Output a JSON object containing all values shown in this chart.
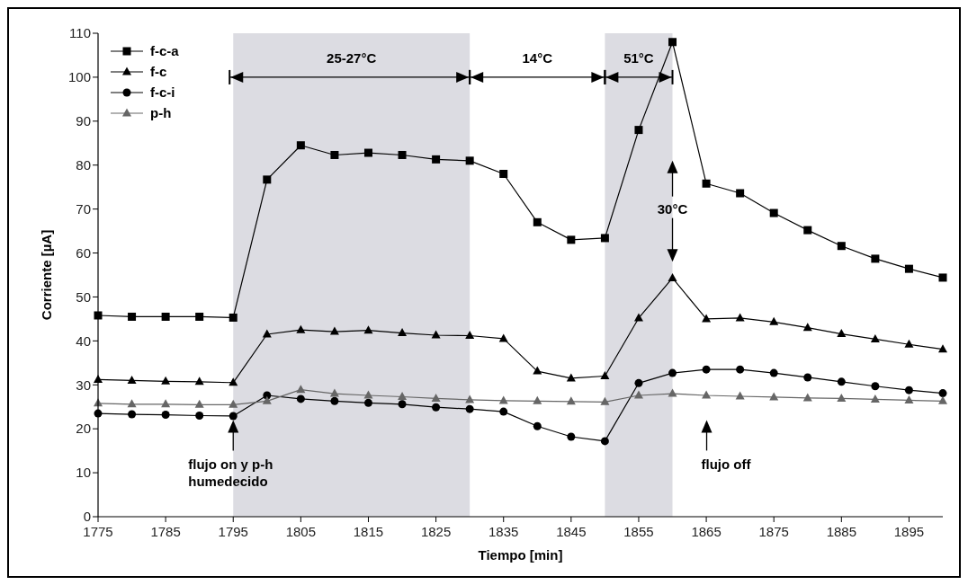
{
  "chart_data": {
    "type": "line",
    "xlabel": "Tiempo [min]",
    "ylabel": "Corriente [µA]",
    "x": [
      1775,
      1780,
      1785,
      1790,
      1795,
      1800,
      1805,
      1810,
      1815,
      1820,
      1825,
      1830,
      1835,
      1840,
      1845,
      1850,
      1855,
      1860,
      1865,
      1870,
      1875,
      1880,
      1885,
      1890,
      1895,
      1900
    ],
    "series": [
      {
        "name": "f-c-a",
        "color": "#000000",
        "marker": "square",
        "values": [
          45.8,
          45.5,
          45.5,
          45.5,
          45.3,
          76.7,
          84.5,
          82.3,
          82.8,
          82.3,
          81.3,
          81,
          78,
          67,
          63,
          63.4,
          88,
          108,
          75.8,
          73.6,
          69.1,
          65.2,
          61.6,
          58.7,
          56.4,
          54.4
        ]
      },
      {
        "name": "f-c",
        "color": "#000000",
        "marker": "triangle",
        "values": [
          31.2,
          31,
          30.8,
          30.7,
          30.5,
          41.5,
          42.5,
          42.1,
          42.4,
          41.8,
          41.3,
          41.2,
          40.5,
          33.1,
          31.5,
          32,
          45.2,
          54.3,
          45,
          45.2,
          44.3,
          43,
          41.6,
          40.4,
          39.2,
          38.1
        ]
      },
      {
        "name": "f-c-i",
        "color": "#000000",
        "marker": "circle",
        "values": [
          23.5,
          23.3,
          23.2,
          23,
          22.9,
          27.6,
          26.8,
          26.3,
          25.9,
          25.6,
          24.9,
          24.5,
          23.9,
          20.6,
          18.2,
          17.2,
          30.4,
          32.7,
          33.5,
          33.5,
          32.7,
          31.7,
          30.7,
          29.7,
          28.8,
          28.1
        ]
      },
      {
        "name": "p-h",
        "color": "#666666",
        "marker": "triangle",
        "values": [
          25.8,
          25.6,
          25.6,
          25.5,
          25.5,
          26.3,
          28.9,
          28,
          27.6,
          27.3,
          26.9,
          26.6,
          26.4,
          26.3,
          26.2,
          26.1,
          27.6,
          28,
          27.6,
          27.4,
          27.2,
          27,
          26.9,
          26.7,
          26.5,
          26.3
        ]
      }
    ],
    "bands": [
      {
        "axis": "x",
        "from": 1795,
        "to": 1830,
        "label": "25-27°C",
        "color": "#dcdce2"
      },
      {
        "axis": "x",
        "from": 1850,
        "to": 1860,
        "label": "51°C",
        "color": "#dcdce2"
      }
    ],
    "annotations": [
      "14°C",
      {
        "text": "30°C",
        "x": 1860,
        "y": 70
      },
      {
        "text": "flujo on y p-h humedecido",
        "x": 1795,
        "y": 22
      },
      "flujo off"
    ],
    "xlim": [
      1775,
      1900
    ],
    "xticks": [
      1775,
      1785,
      1795,
      1805,
      1815,
      1825,
      1835,
      1845,
      1855,
      1865,
      1875,
      1885,
      1895
    ],
    "ylim": [
      0,
      110
    ],
    "yticks": [
      0,
      10,
      20,
      30,
      40,
      50,
      60,
      70,
      80,
      90,
      100,
      110
    ],
    "grid": false,
    "legend": "top left"
  }
}
